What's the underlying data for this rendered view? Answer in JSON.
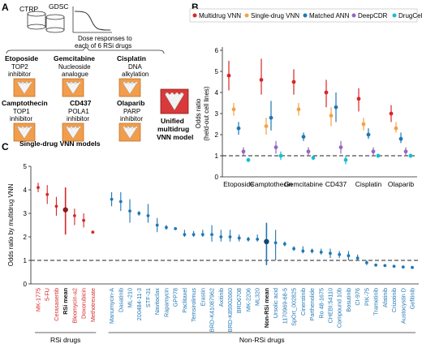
{
  "panels": {
    "a": "A",
    "b": "B",
    "c": "C"
  },
  "panel_a": {
    "db1": "CTRP",
    "db2": "GDSC",
    "dose_caption_1": "Dose responses to",
    "dose_caption_2": "each of 6 RSi drugs",
    "drugs": [
      {
        "name": "Etoposide",
        "l1": "TOP2",
        "l2": "inhibitor"
      },
      {
        "name": "Gemcitabine",
        "l1": "Nucleoside",
        "l2": "analogue"
      },
      {
        "name": "Cisplatin",
        "l1": "DNA",
        "l2": "alkylation"
      },
      {
        "name": "Camptothecin",
        "l1": "TOP1",
        "l2": "inhibitor"
      },
      {
        "name": "CD437",
        "l1": "POLA1",
        "l2": "inhibitor"
      },
      {
        "name": "Olaparib",
        "l1": "PARP",
        "l2": "inhibitor"
      }
    ],
    "single_models_label": "Single-drug VNN models",
    "unified_1": "Unified",
    "unified_2": "multidrug",
    "unified_3": "VNN model"
  },
  "chart_data": [
    {
      "type": "scatter",
      "ylabel": "Odds ratio\n(held-out cell lines)",
      "ylim": [
        0,
        6
      ],
      "yticks": [
        0,
        1,
        2,
        3,
        4,
        5,
        6
      ],
      "reference_line": 1,
      "legend_placement": "top",
      "categories": [
        "Etoposide",
        "Camptothecin",
        "Gemcitabine",
        "CD437",
        "Cisplatin",
        "Olaparib"
      ],
      "series": [
        {
          "name": "Multidrug VNN",
          "color": "#d62728",
          "values": [
            4.8,
            4.6,
            4.5,
            4.0,
            3.7,
            3.0
          ],
          "low": [
            4.1,
            3.9,
            3.9,
            3.3,
            3.1,
            2.6
          ],
          "high": [
            5.5,
            5.6,
            5.1,
            4.6,
            4.2,
            3.4
          ]
        },
        {
          "name": "Single-drug VNN",
          "color": "#f5a142",
          "values": [
            3.2,
            2.4,
            3.2,
            2.9,
            2.5,
            2.3
          ],
          "low": [
            2.9,
            2.0,
            2.9,
            2.4,
            2.2,
            2.1
          ],
          "high": [
            3.5,
            2.8,
            3.5,
            3.3,
            2.8,
            2.6
          ]
        },
        {
          "name": "Matched ANN",
          "color": "#1f77b4",
          "values": [
            2.3,
            2.8,
            1.9,
            3.3,
            2.0,
            1.8
          ],
          "low": [
            2.0,
            2.2,
            1.7,
            2.6,
            1.8,
            1.6
          ],
          "high": [
            2.6,
            3.6,
            2.1,
            4.0,
            2.3,
            2.1
          ]
        },
        {
          "name": "DeepCDR",
          "color": "#9467bd",
          "values": [
            1.2,
            1.4,
            1.2,
            1.4,
            1.2,
            1.2
          ],
          "low": [
            1.0,
            1.1,
            1.0,
            1.1,
            1.0,
            1.0
          ],
          "high": [
            1.4,
            1.7,
            1.4,
            1.7,
            1.4,
            1.4
          ]
        },
        {
          "name": "DrugCell",
          "color": "#17becf",
          "values": [
            0.8,
            1.0,
            0.9,
            0.8,
            1.0,
            1.0
          ],
          "low": [
            0.7,
            0.8,
            0.8,
            0.6,
            0.9,
            0.9
          ],
          "high": [
            0.9,
            1.2,
            1.0,
            1.0,
            1.1,
            1.1
          ]
        }
      ]
    },
    {
      "type": "scatter",
      "ylabel": "Odds ratio by multidrug VNN",
      "ylim": [
        0,
        5
      ],
      "yticks": [
        0,
        1,
        2,
        3,
        4,
        5
      ],
      "reference_line": 1,
      "group_labels": {
        "rsi": "RSi drugs",
        "non_rsi": "Non-RSi drugs"
      },
      "colors": {
        "rsi": "#d62728",
        "non_rsi": "#1f77b4",
        "mean": "#111111"
      },
      "points": [
        {
          "label": "MK-1775",
          "group": "rsi",
          "y": 4.1,
          "lo": 3.9,
          "hi": 4.3
        },
        {
          "label": "5-FU",
          "group": "rsi",
          "y": 3.8,
          "lo": 3.4,
          "hi": 4.2
        },
        {
          "label": "Cerasasertib",
          "group": "rsi",
          "y": 3.3,
          "lo": 2.9,
          "hi": 3.7
        },
        {
          "label": "RSi mean",
          "group": "rsi",
          "mean": true,
          "y": 3.15,
          "lo": 2.1,
          "hi": 4.1
        },
        {
          "label": "Bleomycin-a2",
          "group": "rsi",
          "y": 2.9,
          "lo": 2.5,
          "hi": 3.2
        },
        {
          "label": "Doxorubicin",
          "group": "rsi",
          "y": 2.7,
          "lo": 2.4,
          "hi": 3.0
        },
        {
          "label": "Methotrexate",
          "group": "rsi",
          "y": 2.2,
          "lo": 2.15,
          "hi": 2.25
        },
        {
          "label": "Manumycin-A",
          "group": "non_rsi",
          "y": 3.6,
          "lo": 3.3,
          "hi": 3.9
        },
        {
          "label": "Dasatinib",
          "group": "non_rsi",
          "y": 3.5,
          "lo": 3.1,
          "hi": 3.9
        },
        {
          "label": "ML-210",
          "group": "non_rsi",
          "y": 3.1,
          "lo": 2.6,
          "hi": 3.6
        },
        {
          "label": "200484-11-3",
          "group": "non_rsi",
          "y": 3.0,
          "lo": 2.9,
          "hi": 3.1
        },
        {
          "label": "STF-31",
          "group": "non_rsi",
          "y": 2.9,
          "lo": 2.6,
          "hi": 3.4
        },
        {
          "label": "Navitoclax",
          "group": "non_rsi",
          "y": 2.5,
          "lo": 2.2,
          "hi": 2.8
        },
        {
          "label": "Rapamycin",
          "group": "non_rsi",
          "y": 2.4,
          "lo": 2.3,
          "hi": 2.5
        },
        {
          "label": "GPP78",
          "group": "non_rsi",
          "y": 2.35,
          "lo": 2.3,
          "hi": 2.4
        },
        {
          "label": "Paclitaxel",
          "group": "non_rsi",
          "y": 2.1,
          "lo": 2.0,
          "hi": 2.3
        },
        {
          "label": "Temsirolimus",
          "group": "non_rsi",
          "y": 2.1,
          "lo": 2.0,
          "hi": 2.25
        },
        {
          "label": "Erastin",
          "group": "non_rsi",
          "y": 2.1,
          "lo": 2.0,
          "hi": 2.3
        },
        {
          "label": "BRD-K41087962",
          "group": "non_rsi",
          "y": 2.1,
          "lo": 1.8,
          "hi": 2.5
        },
        {
          "label": "Axitinib",
          "group": "non_rsi",
          "y": 2.0,
          "lo": 1.8,
          "hi": 2.3
        },
        {
          "label": "BRD-K85902660",
          "group": "non_rsi",
          "y": 2.0,
          "lo": 1.8,
          "hi": 2.3
        },
        {
          "label": "BRD6708",
          "group": "non_rsi",
          "y": 1.95,
          "lo": 1.8,
          "hi": 2.1
        },
        {
          "label": "MK-2206",
          "group": "non_rsi",
          "y": 1.9,
          "lo": 1.8,
          "hi": 2.0
        },
        {
          "label": "ML320",
          "group": "non_rsi",
          "y": 1.9,
          "lo": 1.8,
          "hi": 2.1
        },
        {
          "label": "Non-RSi mean",
          "group": "non_rsi",
          "mean": true,
          "y": 1.8,
          "lo": 0.8,
          "hi": 2.6
        },
        {
          "label": "Ursolic acid",
          "group": "non_rsi",
          "y": 1.75,
          "lo": 1.0,
          "hi": 2.3
        },
        {
          "label": "1170969-68-5",
          "group": "non_rsi",
          "y": 1.7,
          "lo": 1.6,
          "hi": 1.8
        },
        {
          "label": "SpOrt_002825",
          "group": "non_rsi",
          "y": 1.5,
          "lo": 1.4,
          "hi": 1.6
        },
        {
          "label": "Cinerstinib",
          "group": "non_rsi",
          "y": 1.4,
          "lo": 1.3,
          "hi": 1.6
        },
        {
          "label": "Parthenolide",
          "group": "non_rsi",
          "y": 1.4,
          "lo": 1.3,
          "hi": 1.5
        },
        {
          "label": "Ro 48-1675",
          "group": "non_rsi",
          "y": 1.35,
          "lo": 1.25,
          "hi": 1.5
        },
        {
          "label": "CHEBI:54110",
          "group": "non_rsi",
          "y": 1.3,
          "lo": 1.1,
          "hi": 1.5
        },
        {
          "label": "Compound 10b",
          "group": "non_rsi",
          "y": 1.25,
          "lo": 1.1,
          "hi": 1.4
        },
        {
          "label": "Bosutinib",
          "group": "non_rsi",
          "y": 1.2,
          "lo": 1.0,
          "hi": 1.4
        },
        {
          "label": "CI-976",
          "group": "non_rsi",
          "y": 1.1,
          "lo": 1.0,
          "hi": 1.25
        },
        {
          "label": "PIK-75",
          "group": "non_rsi",
          "y": 0.9,
          "lo": 0.8,
          "hi": 1.0
        },
        {
          "label": "Trametinib",
          "group": "non_rsi",
          "y": 0.8,
          "lo": 0.75,
          "hi": 0.85
        },
        {
          "label": "Afatinib",
          "group": "non_rsi",
          "y": 0.78,
          "lo": 0.73,
          "hi": 0.83
        },
        {
          "label": "Crizotinib",
          "group": "non_rsi",
          "y": 0.75,
          "lo": 0.7,
          "hi": 0.8
        },
        {
          "label": "Austocystin D",
          "group": "non_rsi",
          "y": 0.72,
          "lo": 0.67,
          "hi": 0.77
        },
        {
          "label": "Gefitinib",
          "group": "non_rsi",
          "y": 0.7,
          "lo": 0.65,
          "hi": 0.75
        }
      ]
    }
  ]
}
